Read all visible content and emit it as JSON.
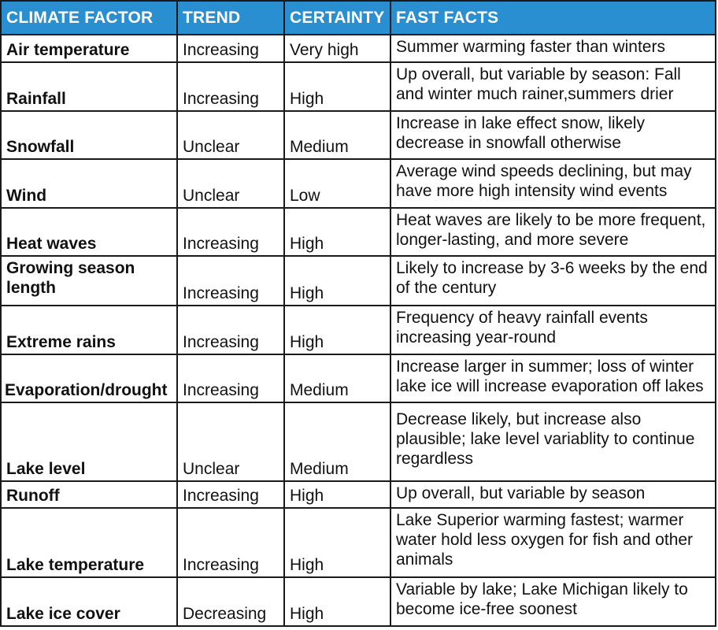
{
  "headers": {
    "factor": "CLIMATE FACTOR",
    "trend": "TREND",
    "certainty": "CERTAINTY",
    "facts": "FAST FACTS"
  },
  "rows": [
    {
      "factor": "Air temperature",
      "trend": "Increasing",
      "certainty": "Very high",
      "facts": "Summer warming faster than winters"
    },
    {
      "factor": "Rainfall",
      "trend": "Increasing",
      "certainty": "High",
      "facts": "Up overall, but variable by season: Fall and winter much rainer,summers drier"
    },
    {
      "factor": "Snowfall",
      "trend": "Unclear",
      "certainty": "Medium",
      "facts": "Increase in lake effect snow, likely decrease in snowfall otherwise"
    },
    {
      "factor": "Wind",
      "trend": "Unclear",
      "certainty": "Low",
      "facts": "Average wind speeds declining, but may have more high intensity wind events"
    },
    {
      "factor": "Heat waves",
      "trend": "Increasing",
      "certainty": "High",
      "facts": "Heat waves are likely to be more frequent, longer-lasting, and more severe"
    },
    {
      "factor": "Growing season length",
      "trend": "Increasing",
      "certainty": "High",
      "facts": "Likely to increase by 3-6 weeks by the end of the century"
    },
    {
      "factor": "Extreme rains",
      "trend": "Increasing",
      "certainty": "High",
      "facts": "Frequency of heavy rainfall events increasing year-round"
    },
    {
      "factor": "Evaporation/drought",
      "trend": "Increasing",
      "certainty": "Medium",
      "facts": "Increase larger in summer; loss of winter lake ice will increase evaporation off lakes"
    },
    {
      "factor": "Lake level",
      "trend": "Unclear",
      "certainty": "Medium",
      "facts": "Decrease likely, but increase also plausible; lake level variablity to continue regardless"
    },
    {
      "factor": "Runoff",
      "trend": "Increasing",
      "certainty": "High",
      "facts": "Up overall, but variable by season"
    },
    {
      "factor": "Lake temperature",
      "trend": "Increasing",
      "certainty": "High",
      "facts": "Lake Superior warming fastest; warmer water hold less oxygen for fish and other animals"
    },
    {
      "factor": "Lake ice cover",
      "trend": "Decreasing",
      "certainty": "High",
      "facts": "Variable by lake; Lake Michigan likely to become ice-free soonest"
    }
  ],
  "colors": {
    "header_background": "#2a8fd0",
    "header_text": "#ffffff",
    "border": "#1a1a1a"
  }
}
